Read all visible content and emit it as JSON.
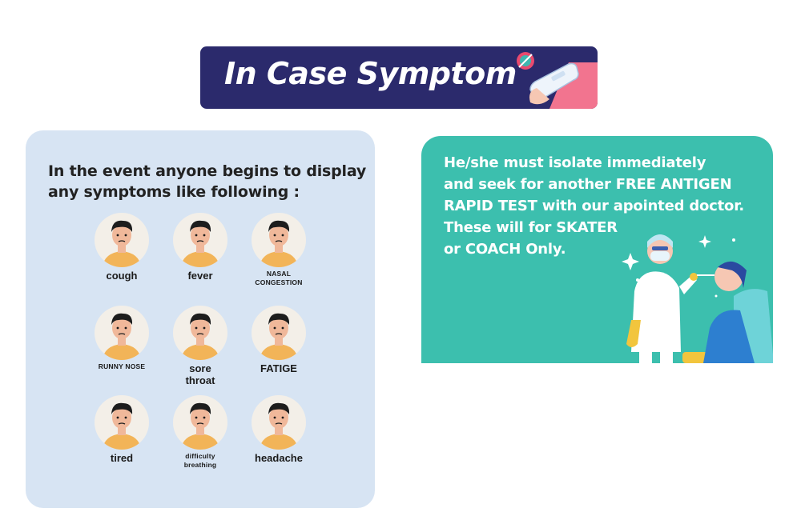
{
  "banner": {
    "title": "In Case Symptom"
  },
  "left_card": {
    "heading_lines": [
      "In the event anyone begins to display",
      "any symptoms like following :"
    ],
    "symptoms": [
      {
        "label": "cough",
        "size": "big"
      },
      {
        "label": "fever",
        "size": "big"
      },
      {
        "label": "NASAL\nCONGESTION",
        "size": "small"
      },
      {
        "label": "RUNNY NOSE",
        "size": "small"
      },
      {
        "label": "sore\nthroat",
        "size": "big"
      },
      {
        "label": "FATIGE",
        "size": "big"
      },
      {
        "label": "tired",
        "size": "big"
      },
      {
        "label": "difficulty\nbreathing",
        "size": "small"
      },
      {
        "label": "headache",
        "size": "big"
      }
    ]
  },
  "right_card": {
    "lines": [
      "He/she must isolate immediately",
      "and seek for another FREE ANTIGEN",
      "RAPID TEST with our apointed doctor.",
      "These will for SKATER",
      "or COACH Only."
    ]
  },
  "colors": {
    "banner_bg": "#2b2a6c",
    "left_card_bg": "#d7e4f3",
    "right_card_bg": "#3cbfae",
    "skin": "#f0b89a",
    "shirt": "#f2b458"
  }
}
